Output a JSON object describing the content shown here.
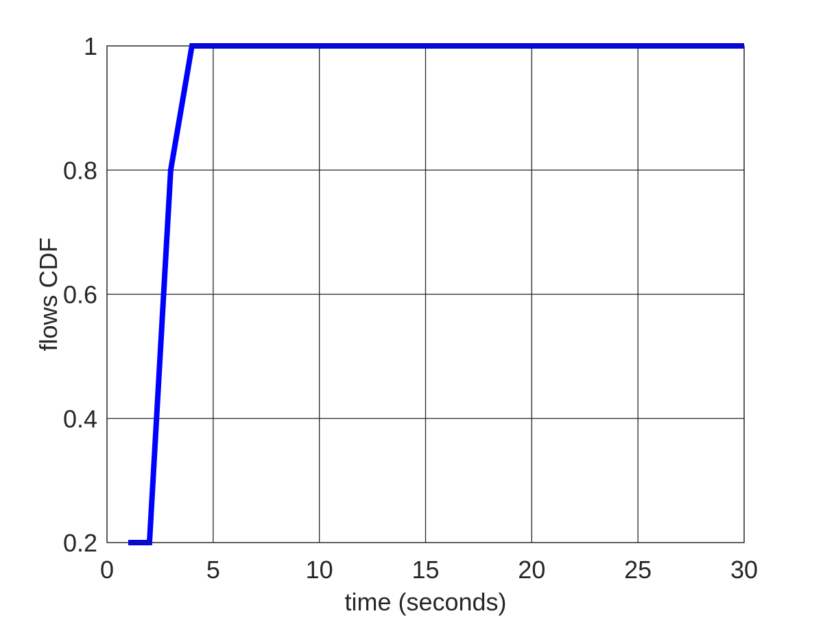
{
  "chart_data": {
    "type": "line",
    "title": "",
    "xlabel": "time (seconds)",
    "ylabel": "flows CDF",
    "xlim": [
      0,
      30
    ],
    "ylim": [
      0.2,
      1
    ],
    "xticks": [
      0,
      5,
      10,
      15,
      20,
      25,
      30
    ],
    "xtick_labels": [
      "0",
      "5",
      "10",
      "15",
      "20",
      "25",
      "30"
    ],
    "yticks": [
      0.2,
      0.4,
      0.6,
      0.8,
      1
    ],
    "ytick_labels": [
      "0.2",
      "0.4",
      "0.6",
      "0.8",
      "1"
    ],
    "grid": true,
    "series": [
      {
        "color": "#0000ff",
        "x": [
          1,
          2,
          3,
          4,
          30
        ],
        "y": [
          0.2,
          0.2,
          0.8,
          1,
          1
        ]
      }
    ]
  }
}
